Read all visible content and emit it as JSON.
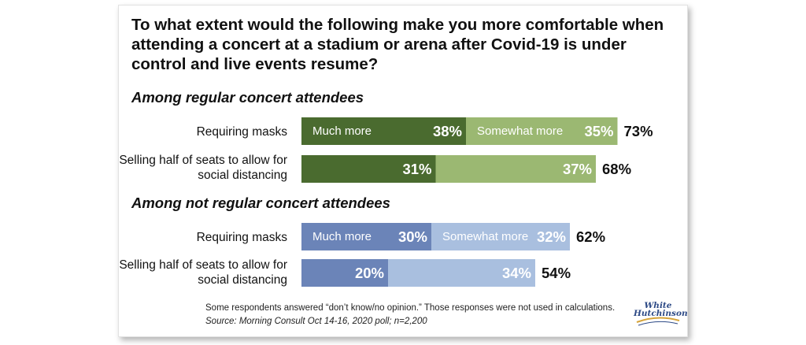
{
  "title": "To what extent would the following make you more comfortable when attending a concert at a stadium or arena after Covid-19 is under control and live events resume?",
  "footnote": "Some respondents answered “don’t know/no opinion.” Those responses were not used in calculations.",
  "source": "Source: Morning Consult Oct 14-16, 2020 poll; n=2,200",
  "logo": {
    "line1": "White",
    "line2": "Hutchinson"
  },
  "colors": {
    "regular_much": "#4a6b2f",
    "regular_somewhat": "#9bb872",
    "not_regular_much": "#6b84b8",
    "not_regular_somewhat": "#a9bfdf"
  },
  "chart_data": {
    "type": "bar",
    "orientation": "horizontal",
    "stacked": true,
    "xlim": [
      0,
      100
    ],
    "series_labels": [
      "Much more",
      "Somewhat more"
    ],
    "groups": [
      {
        "title": "Among regular concert attendees",
        "color_keys": [
          "regular_much",
          "regular_somewhat"
        ],
        "rows": [
          {
            "label": "Requiring masks",
            "values": [
              38,
              35
            ],
            "total": 73,
            "value_labels": [
              "38%",
              "35%"
            ],
            "total_label": "73%",
            "show_series_labels": true
          },
          {
            "label": "Selling half of seats to allow for social distancing",
            "values": [
              31,
              37
            ],
            "total": 68,
            "value_labels": [
              "31%",
              "37%"
            ],
            "total_label": "68%",
            "show_series_labels": false
          }
        ]
      },
      {
        "title": "Among not regular concert attendees",
        "color_keys": [
          "not_regular_much",
          "not_regular_somewhat"
        ],
        "rows": [
          {
            "label": "Requiring masks",
            "values": [
              30,
              32
            ],
            "total": 62,
            "value_labels": [
              "30%",
              "32%"
            ],
            "total_label": "62%",
            "show_series_labels": true
          },
          {
            "label": "Selling half of seats to allow for social distancing",
            "values": [
              20,
              34
            ],
            "total": 54,
            "value_labels": [
              "20%",
              "34%"
            ],
            "total_label": "54%",
            "show_series_labels": false
          }
        ]
      }
    ]
  }
}
